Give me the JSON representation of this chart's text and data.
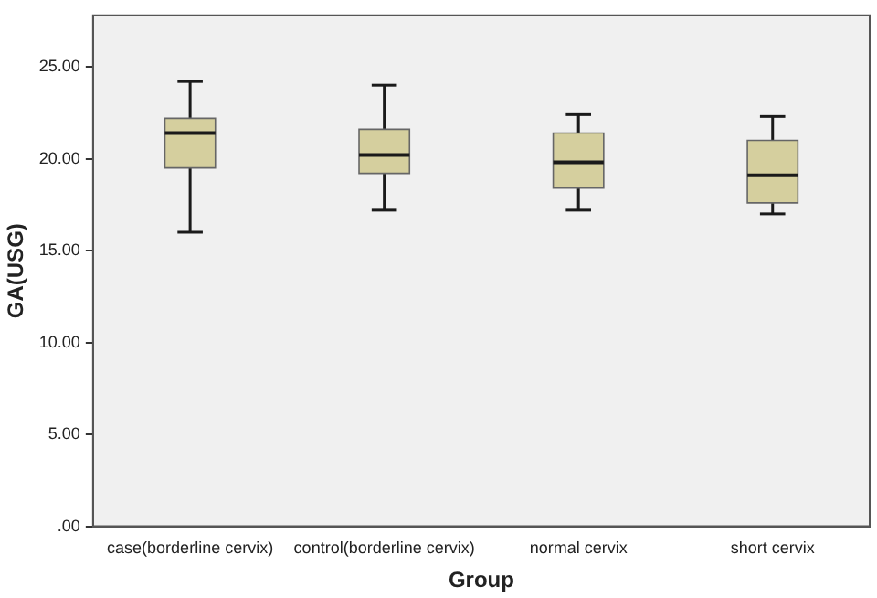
{
  "chart_data": {
    "type": "box",
    "xlabel": "Group",
    "ylabel": "GA(USG)",
    "categories": [
      "case(borderline cervix)",
      "control(borderline cervix)",
      "normal cervix",
      "short cervix"
    ],
    "color": "#d5cf9e",
    "boxes": [
      {
        "low": 16.0,
        "q1": 19.5,
        "median": 21.4,
        "q3": 22.2,
        "high": 24.2
      },
      {
        "low": 17.2,
        "q1": 19.2,
        "median": 20.2,
        "q3": 21.6,
        "high": 24.0
      },
      {
        "low": 17.2,
        "q1": 18.4,
        "median": 19.8,
        "q3": 21.4,
        "high": 22.4
      },
      {
        "low": 17.0,
        "q1": 17.6,
        "median": 19.1,
        "q3": 21.0,
        "high": 22.3
      }
    ],
    "ylim": [
      0,
      27.8
    ],
    "yticks": [
      {
        "value": 0,
        "label": ".00"
      },
      {
        "value": 5,
        "label": "5.00"
      },
      {
        "value": 10,
        "label": "10.00"
      },
      {
        "value": 15,
        "label": "15.00"
      },
      {
        "value": 20,
        "label": "20.00"
      },
      {
        "value": 25,
        "label": "25.00"
      }
    ],
    "grid": false,
    "legend": false
  }
}
